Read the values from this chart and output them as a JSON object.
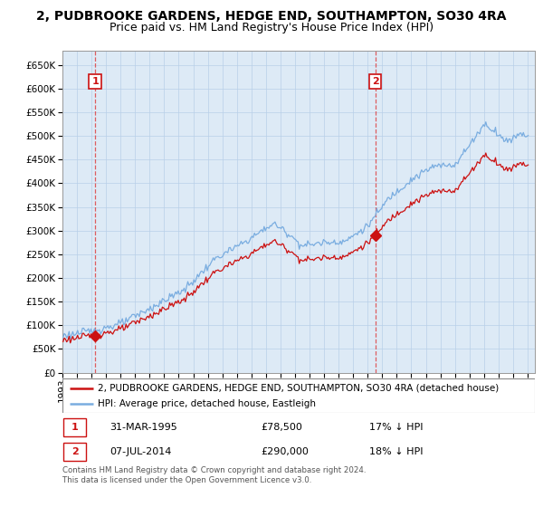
{
  "title": "2, PUDBROOKE GARDENS, HEDGE END, SOUTHAMPTON, SO30 4RA",
  "subtitle": "Price paid vs. HM Land Registry's House Price Index (HPI)",
  "ylim": [
    0,
    680000
  ],
  "yticks": [
    0,
    50000,
    100000,
    150000,
    200000,
    250000,
    300000,
    350000,
    400000,
    450000,
    500000,
    550000,
    600000,
    650000
  ],
  "xlim_start": 1993.0,
  "xlim_end": 2025.5,
  "sale1_date": 1995.25,
  "sale1_price": 78500,
  "sale1_label": "1",
  "sale2_date": 2014.52,
  "sale2_price": 290000,
  "sale2_label": "2",
  "hpi_color": "#7aade0",
  "price_color": "#cc1111",
  "dashed_color": "#dd4444",
  "bg_color": "#ddeaf6",
  "grid_color": "#b8cfe8",
  "legend_label1": "2, PUDBROOKE GARDENS, HEDGE END, SOUTHAMPTON, SO30 4RA (detached house)",
  "legend_label2": "HPI: Average price, detached house, Eastleigh",
  "table_row1": [
    "1",
    "31-MAR-1995",
    "£78,500",
    "17% ↓ HPI"
  ],
  "table_row2": [
    "2",
    "07-JUL-2014",
    "£290,000",
    "18% ↓ HPI"
  ],
  "footer": "Contains HM Land Registry data © Crown copyright and database right 2024.\nThis data is licensed under the Open Government Licence v3.0.",
  "title_fontsize": 10,
  "subtitle_fontsize": 9,
  "tick_fontsize": 7.5,
  "legend_fontsize": 7.5,
  "table_fontsize": 8
}
